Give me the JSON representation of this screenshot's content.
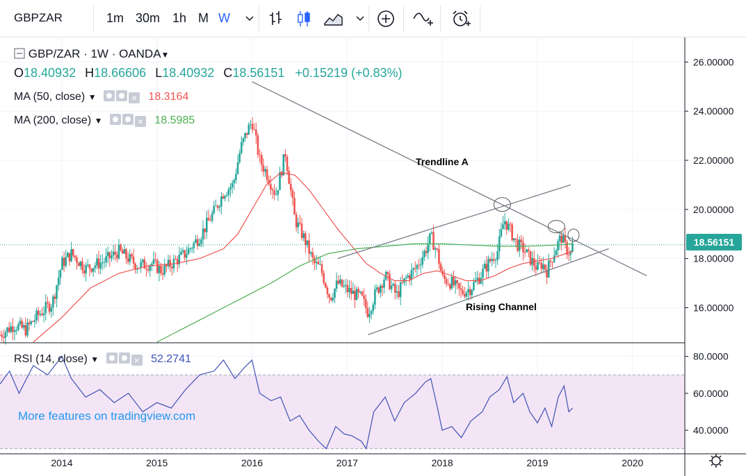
{
  "toolbar": {
    "symbol": "GBPZAR",
    "intervals": [
      "1m",
      "30m",
      "1h",
      "M",
      "W"
    ],
    "active_interval": "W",
    "icons": [
      "chevron-down-icon",
      "bar-chart-icon",
      "candles-icon",
      "area-chart-icon",
      "chevron-down-icon",
      "add-indicator-icon",
      "compare-icon",
      "alarm-icon"
    ]
  },
  "legend": {
    "title": "GBP/ZAR · 1W · OANDA",
    "open_label": "O",
    "open": "18.40932",
    "high_label": "H",
    "high": "18.66606",
    "low_label": "L",
    "low": "18.40932",
    "close_label": "C",
    "close": "18.56151",
    "change": "+0.15219 (+0.83%)",
    "ma50_label": "MA (50, close)",
    "ma50_value": "18.3164",
    "ma200_label": "MA (200, close)",
    "ma200_value": "18.5985",
    "rsi_label": "RSI (14, close)",
    "rsi_value": "52.2741"
  },
  "colors": {
    "up": "#26a69a",
    "down": "#ef5350",
    "ma50": "#ef5350",
    "ma200": "#4caf50",
    "rsi": "#3f51b5",
    "rsi_band": "#f3e5f5",
    "trendline": "#787b86",
    "accent": "#2962ff"
  },
  "annotations": {
    "trendline_a": "Trendline A",
    "rising_channel": "Rising Channel"
  },
  "watermark": "More features on tradingview.com",
  "last_price_tag": "18.56151",
  "chart_data": {
    "type": "candlestick",
    "title": "GBP/ZAR · 1W · OANDA",
    "x_tick_labels": [
      "2014",
      "2015",
      "2016",
      "2017",
      "2018",
      "2019",
      "2020"
    ],
    "x_tick_years": [
      2014,
      2015,
      2016,
      2017,
      2018,
      2019,
      2020
    ],
    "x_range": [
      2013.35,
      2020.55
    ],
    "price_axis": {
      "ticks": [
        16,
        18,
        20,
        22,
        24,
        26
      ],
      "labels": [
        "16.00000",
        "18.00000",
        "20.00000",
        "22.00000",
        "24.00000",
        "26.00000"
      ],
      "range": [
        14.6,
        27.0
      ]
    },
    "rsi_axis": {
      "ticks": [
        40,
        60,
        80
      ],
      "labels": [
        "40.0000",
        "60.0000",
        "80.0000"
      ],
      "range": [
        28,
        87
      ],
      "band": [
        30,
        70
      ]
    },
    "price_path": [
      [
        2013.35,
        14.9
      ],
      [
        2013.5,
        15.3
      ],
      [
        2013.62,
        15.1
      ],
      [
        2013.75,
        15.7
      ],
      [
        2013.9,
        16.2
      ],
      [
        2014.0,
        17.8
      ],
      [
        2014.1,
        18.2
      ],
      [
        2014.25,
        17.6
      ],
      [
        2014.45,
        17.9
      ],
      [
        2014.6,
        18.3
      ],
      [
        2014.8,
        17.7
      ],
      [
        2014.95,
        17.8
      ],
      [
        2015.05,
        17.5
      ],
      [
        2015.3,
        18.2
      ],
      [
        2015.45,
        18.9
      ],
      [
        2015.6,
        19.9
      ],
      [
        2015.7,
        20.7
      ],
      [
        2015.8,
        21.0
      ],
      [
        2015.88,
        22.5
      ],
      [
        2015.95,
        23.2
      ],
      [
        2016.0,
        23.6
      ],
      [
        2016.08,
        22.0
      ],
      [
        2016.15,
        21.5
      ],
      [
        2016.25,
        20.6
      ],
      [
        2016.35,
        22.3
      ],
      [
        2016.45,
        19.6
      ],
      [
        2016.55,
        18.8
      ],
      [
        2016.65,
        17.8
      ],
      [
        2016.72,
        17.6
      ],
      [
        2016.82,
        16.4
      ],
      [
        2016.9,
        17.0
      ],
      [
        2016.97,
        16.8
      ],
      [
        2017.05,
        16.6
      ],
      [
        2017.15,
        16.4
      ],
      [
        2017.22,
        15.8
      ],
      [
        2017.3,
        16.6
      ],
      [
        2017.4,
        17.3
      ],
      [
        2017.52,
        16.5
      ],
      [
        2017.62,
        17.2
      ],
      [
        2017.72,
        17.6
      ],
      [
        2017.82,
        18.3
      ],
      [
        2017.88,
        18.9
      ],
      [
        2017.95,
        18.2
      ],
      [
        2018.0,
        17.2
      ],
      [
        2018.1,
        17.0
      ],
      [
        2018.2,
        16.6
      ],
      [
        2018.3,
        16.8
      ],
      [
        2018.4,
        17.3
      ],
      [
        2018.5,
        17.9
      ],
      [
        2018.58,
        18.3
      ],
      [
        2018.65,
        19.6
      ],
      [
        2018.72,
        19.1
      ],
      [
        2018.78,
        18.6
      ],
      [
        2018.85,
        18.4
      ],
      [
        2018.92,
        18.0
      ],
      [
        2019.0,
        17.6
      ],
      [
        2019.05,
        17.8
      ],
      [
        2019.1,
        17.5
      ],
      [
        2019.18,
        18.3
      ],
      [
        2019.25,
        18.9
      ],
      [
        2019.3,
        18.4
      ],
      [
        2019.35,
        18.2
      ],
      [
        2019.37,
        18.56
      ]
    ],
    "ma50_path": [
      [
        2013.7,
        14.6
      ],
      [
        2014.0,
        15.6
      ],
      [
        2014.3,
        16.8
      ],
      [
        2014.6,
        17.4
      ],
      [
        2014.9,
        17.7
      ],
      [
        2015.2,
        17.8
      ],
      [
        2015.45,
        18.0
      ],
      [
        2015.7,
        18.4
      ],
      [
        2015.85,
        19.0
      ],
      [
        2016.0,
        20.0
      ],
      [
        2016.15,
        21.0
      ],
      [
        2016.3,
        21.5
      ],
      [
        2016.45,
        21.4
      ],
      [
        2016.6,
        20.8
      ],
      [
        2016.75,
        20.0
      ],
      [
        2016.9,
        19.2
      ],
      [
        2017.05,
        18.5
      ],
      [
        2017.2,
        17.8
      ],
      [
        2017.35,
        17.4
      ],
      [
        2017.5,
        17.1
      ],
      [
        2017.65,
        17.1
      ],
      [
        2017.8,
        17.4
      ],
      [
        2017.95,
        17.5
      ],
      [
        2018.1,
        17.3
      ],
      [
        2018.25,
        17.1
      ],
      [
        2018.4,
        17.1
      ],
      [
        2018.55,
        17.3
      ],
      [
        2018.7,
        17.6
      ],
      [
        2018.85,
        17.8
      ],
      [
        2019.0,
        17.9
      ],
      [
        2019.15,
        18.0
      ],
      [
        2019.37,
        18.3
      ]
    ],
    "ma200_path": [
      [
        2015.0,
        14.6
      ],
      [
        2015.3,
        15.2
      ],
      [
        2015.6,
        15.8
      ],
      [
        2015.9,
        16.4
      ],
      [
        2016.2,
        17.0
      ],
      [
        2016.5,
        17.7
      ],
      [
        2016.8,
        18.2
      ],
      [
        2017.1,
        18.4
      ],
      [
        2017.4,
        18.5
      ],
      [
        2017.7,
        18.6
      ],
      [
        2018.0,
        18.6
      ],
      [
        2018.3,
        18.55
      ],
      [
        2018.6,
        18.5
      ],
      [
        2018.9,
        18.5
      ],
      [
        2019.2,
        18.55
      ],
      [
        2019.37,
        18.6
      ]
    ],
    "rsi_path": [
      [
        2013.35,
        65
      ],
      [
        2013.45,
        72
      ],
      [
        2013.55,
        60
      ],
      [
        2013.7,
        75
      ],
      [
        2013.85,
        70
      ],
      [
        2014.0,
        80
      ],
      [
        2014.1,
        68
      ],
      [
        2014.25,
        58
      ],
      [
        2014.4,
        62
      ],
      [
        2014.55,
        55
      ],
      [
        2014.7,
        60
      ],
      [
        2014.85,
        50
      ],
      [
        2015.0,
        55
      ],
      [
        2015.15,
        52
      ],
      [
        2015.3,
        62
      ],
      [
        2015.45,
        70
      ],
      [
        2015.6,
        72
      ],
      [
        2015.7,
        78
      ],
      [
        2015.82,
        68
      ],
      [
        2015.92,
        74
      ],
      [
        2016.0,
        78
      ],
      [
        2016.08,
        60
      ],
      [
        2016.2,
        56
      ],
      [
        2016.3,
        58
      ],
      [
        2016.4,
        45
      ],
      [
        2016.5,
        48
      ],
      [
        2016.6,
        40
      ],
      [
        2016.7,
        34
      ],
      [
        2016.78,
        30
      ],
      [
        2016.88,
        42
      ],
      [
        2016.97,
        38
      ],
      [
        2017.05,
        37
      ],
      [
        2017.15,
        34
      ],
      [
        2017.2,
        30
      ],
      [
        2017.28,
        50
      ],
      [
        2017.4,
        58
      ],
      [
        2017.5,
        45
      ],
      [
        2017.6,
        55
      ],
      [
        2017.72,
        60
      ],
      [
        2017.82,
        66
      ],
      [
        2017.88,
        68
      ],
      [
        2017.95,
        52
      ],
      [
        2018.0,
        40
      ],
      [
        2018.1,
        42
      ],
      [
        2018.2,
        36
      ],
      [
        2018.3,
        45
      ],
      [
        2018.42,
        50
      ],
      [
        2018.5,
        58
      ],
      [
        2018.6,
        62
      ],
      [
        2018.68,
        69
      ],
      [
        2018.75,
        55
      ],
      [
        2018.85,
        60
      ],
      [
        2018.92,
        50
      ],
      [
        2019.0,
        44
      ],
      [
        2019.08,
        52
      ],
      [
        2019.15,
        42
      ],
      [
        2019.22,
        58
      ],
      [
        2019.28,
        64
      ],
      [
        2019.33,
        50
      ],
      [
        2019.37,
        52
      ]
    ],
    "trendlines": [
      {
        "name": "Trendline A",
        "from": [
          2016.0,
          25.2
        ],
        "to": [
          2020.15,
          17.3
        ]
      },
      {
        "name": "Rising Channel upper",
        "from": [
          2016.9,
          18.0
        ],
        "to": [
          2019.35,
          21.0
        ]
      },
      {
        "name": "Rising Channel lower",
        "from": [
          2017.22,
          14.9
        ],
        "to": [
          2019.75,
          18.4
        ]
      }
    ]
  }
}
